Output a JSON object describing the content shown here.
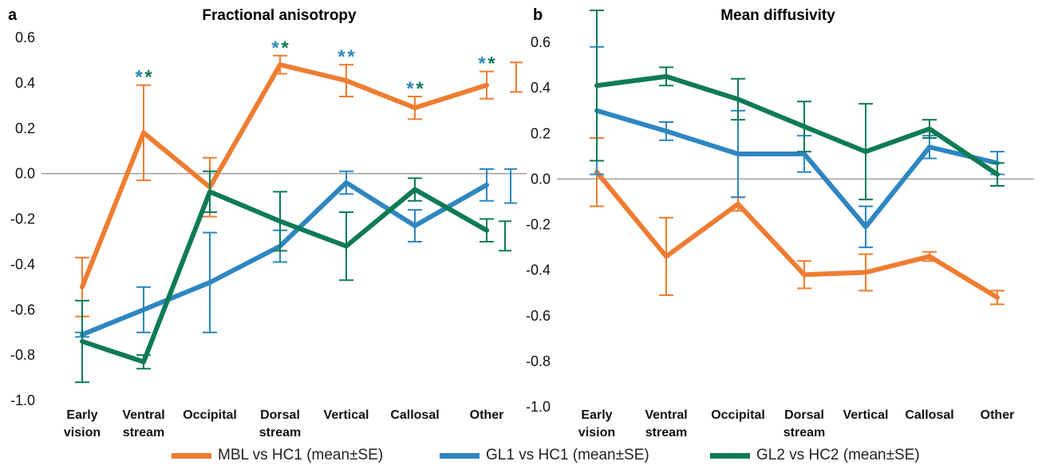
{
  "panels": [
    {
      "letter": "a",
      "title": "Fractional anisotropy"
    },
    {
      "letter": "b",
      "title": "Mean diffusivity"
    }
  ],
  "colors": {
    "MBL": "#EE7D31",
    "GL1": "#2E86C1",
    "GL2": "#0E7B55",
    "zero": "#9E9E9E",
    "axisText": "#111111"
  },
  "legend": [
    {
      "label": "MBL vs HC1 (mean±SE)",
      "color": "#EE7D31"
    },
    {
      "label": "GL1 vs HC1 (mean±SE)",
      "color": "#2E86C1"
    },
    {
      "label": "GL2 vs HC2 (mean±SE)",
      "color": "#0E7B55"
    }
  ],
  "chart_data": [
    {
      "type": "line",
      "panel": "a",
      "title": "Fractional anisotropy",
      "categories": [
        [
          "Early",
          "vision"
        ],
        [
          "Ventral",
          "stream"
        ],
        [
          "Occipital"
        ],
        [
          "Dorsal",
          "stream"
        ],
        [
          "Vertical"
        ],
        [
          "Callosal"
        ],
        [
          "Other"
        ]
      ],
      "yticks": [
        "0.6",
        "0.4",
        "0.2",
        "0.0",
        "-0.2",
        "-0.4",
        "-0.6",
        "-0.8",
        "-1.0"
      ],
      "ylim": [
        -1.0,
        0.6
      ],
      "zero_line": true,
      "series": [
        {
          "name": "MBL vs HC1 (mean±SE)",
          "key": "MBL",
          "values": [
            -0.5,
            0.18,
            -0.06,
            0.48,
            0.41,
            0.29,
            0.39
          ],
          "errors": [
            0.13,
            0.21,
            0.13,
            0.04,
            0.07,
            0.05,
            0.06
          ]
        },
        {
          "name": "GL1 vs HC1 (mean±SE)",
          "key": "GL1",
          "values": [
            -0.71,
            -0.6,
            -0.48,
            -0.32,
            -0.04,
            -0.23,
            -0.05
          ],
          "errors": [
            0.01,
            0.1,
            0.22,
            0.07,
            0.05,
            0.07,
            0.07
          ]
        },
        {
          "name": "GL2 vs HC2 (mean±SE)",
          "key": "GL2",
          "values": [
            -0.74,
            -0.83,
            -0.08,
            -0.21,
            -0.32,
            -0.07,
            -0.25
          ],
          "errors": [
            0.18,
            0.03,
            0.09,
            0.13,
            0.15,
            0.05,
            0.05
          ]
        }
      ],
      "right_ranges": [
        {
          "key": "MBL",
          "low": 0.36,
          "high": 0.49
        },
        {
          "key": "GL1",
          "low": -0.13,
          "high": 0.02
        },
        {
          "key": "GL2",
          "low": -0.34,
          "high": -0.21
        }
      ],
      "significance": [
        {
          "category_index": 1,
          "text": "*",
          "color_key": "GL1",
          "side": "left"
        },
        {
          "category_index": 1,
          "text": "*",
          "color_key": "GL2",
          "side": "right"
        },
        {
          "category_index": 3,
          "text": "*",
          "color_key": "GL1",
          "side": "left"
        },
        {
          "category_index": 3,
          "text": "*",
          "color_key": "GL2",
          "side": "right"
        },
        {
          "category_index": 4,
          "text": "*",
          "color_key": "GL1",
          "side": "left"
        },
        {
          "category_index": 4,
          "text": "*",
          "color_key": "GL1",
          "side": "right"
        },
        {
          "category_index": 5,
          "text": "*",
          "color_key": "GL1",
          "side": "left"
        },
        {
          "category_index": 5,
          "text": "*",
          "color_key": "GL2",
          "side": "right"
        },
        {
          "category_index": 6,
          "text": "*",
          "color_key": "GL1",
          "side": "left"
        },
        {
          "category_index": 6,
          "text": "*",
          "color_key": "GL2",
          "side": "right"
        }
      ]
    },
    {
      "type": "line",
      "panel": "b",
      "title": "Mean diffusivity",
      "categories": [
        [
          "Early",
          "vision"
        ],
        [
          "Ventral",
          "stream"
        ],
        [
          "Occipital"
        ],
        [
          "Dorsal",
          "stream"
        ],
        [
          "Vertical"
        ],
        [
          "Callosal"
        ],
        [
          "Other"
        ]
      ],
      "yticks": [
        "0.6",
        "0.4",
        "0.2",
        "0.0",
        "-0.2",
        "-0.4",
        "-0.6",
        "-0.8",
        "-1.0"
      ],
      "ylim": [
        -1.0,
        0.6
      ],
      "zero_line": true,
      "series": [
        {
          "name": "MBL vs HC1 (mean±SE)",
          "key": "MBL",
          "values": [
            0.03,
            -0.34,
            -0.11,
            -0.42,
            -0.41,
            -0.34,
            -0.52
          ],
          "errors": [
            0.15,
            0.17,
            0.03,
            0.06,
            0.08,
            0.02,
            0.03
          ]
        },
        {
          "name": "GL1 vs HC1 (mean±SE)",
          "key": "GL1",
          "values": [
            0.3,
            0.21,
            0.11,
            0.11,
            -0.21,
            0.14,
            0.07
          ],
          "errors": [
            0.28,
            0.04,
            0.19,
            0.08,
            0.09,
            0.05,
            0.05
          ]
        },
        {
          "name": "GL2 vs HC2 (mean±SE)",
          "key": "GL2",
          "values": [
            0.41,
            0.45,
            0.35,
            0.23,
            0.12,
            0.22,
            0.02
          ],
          "errors": [
            0.33,
            0.04,
            0.09,
            0.11,
            0.21,
            0.04,
            0.05
          ]
        }
      ]
    }
  ]
}
